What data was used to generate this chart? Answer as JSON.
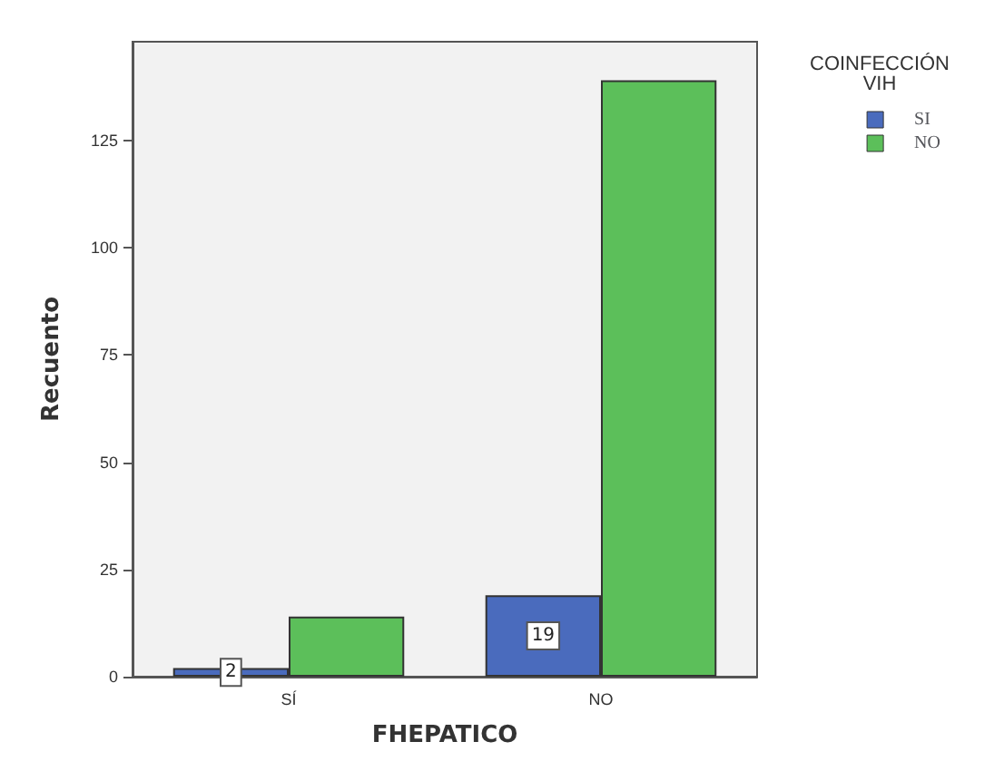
{
  "chart_data": {
    "type": "bar",
    "xlabel": "FHEPATICO",
    "ylabel": "Recuento",
    "legend_title": "COINFECCIÓN\nVIH",
    "categories": [
      "SÍ",
      "NO"
    ],
    "series": [
      {
        "name": "SI",
        "color": "#4a6bbd",
        "values": [
          2,
          19
        ],
        "value_labels": [
          "2",
          "19"
        ]
      },
      {
        "name": "NO",
        "color": "#5cbf5a",
        "values": [
          14,
          139
        ],
        "value_labels": [
          null,
          null
        ]
      }
    ],
    "ylim": [
      0,
      148
    ],
    "yticks": [
      0,
      25,
      50,
      75,
      100,
      125
    ],
    "grid": false,
    "legend": "top right"
  }
}
